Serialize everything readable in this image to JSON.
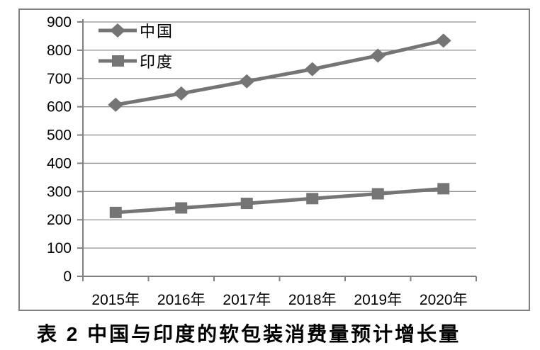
{
  "chart_data": {
    "type": "line",
    "title": "",
    "xlabel": "",
    "ylabel": "",
    "categories": [
      "2015年",
      "2016年",
      "2017年",
      "2018年",
      "2019年",
      "2020年"
    ],
    "series": [
      {
        "name": "中国",
        "marker": "diamond",
        "values": [
          607,
          647,
          690,
          733,
          781,
          834
        ]
      },
      {
        "name": "印度",
        "marker": "square",
        "values": [
          226,
          242,
          258,
          275,
          292,
          310
        ]
      }
    ],
    "ylim": [
      0,
      900
    ],
    "ytick_step": 100,
    "ytick_labels": [
      "0",
      "100",
      "200",
      "300",
      "400",
      "500",
      "600",
      "700",
      "800",
      "900"
    ],
    "grid": true,
    "legend_position": "top-left-inside"
  },
  "caption": "表 2  中国与印度的软包装消费量预计增长量",
  "colors": {
    "background": "#ffffff",
    "frame_border": "#808080",
    "axis": "#808080",
    "gridline": "#919191",
    "series_line": "#757575",
    "text": "#000000"
  }
}
